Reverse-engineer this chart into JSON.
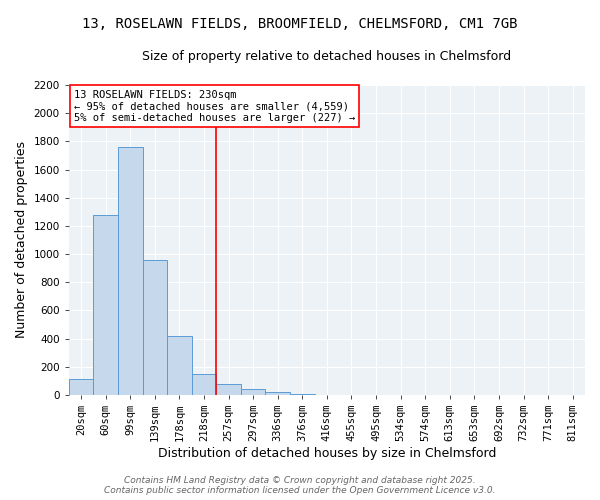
{
  "title_line1": "13, ROSELAWN FIELDS, BROOMFIELD, CHELMSFORD, CM1 7GB",
  "title_line2": "Size of property relative to detached houses in Chelmsford",
  "xlabel": "Distribution of detached houses by size in Chelmsford",
  "ylabel": "Number of detached properties",
  "bin_labels": [
    "20sqm",
    "60sqm",
    "99sqm",
    "139sqm",
    "178sqm",
    "218sqm",
    "257sqm",
    "297sqm",
    "336sqm",
    "376sqm",
    "416sqm",
    "455sqm",
    "495sqm",
    "534sqm",
    "574sqm",
    "613sqm",
    "653sqm",
    "692sqm",
    "732sqm",
    "771sqm",
    "811sqm"
  ],
  "bar_heights": [
    110,
    1280,
    1760,
    960,
    420,
    150,
    75,
    40,
    20,
    5,
    0,
    0,
    0,
    0,
    0,
    0,
    0,
    0,
    0,
    0,
    0
  ],
  "bar_color": "#c6d9ec",
  "bar_edge_color": "#5b9bd5",
  "vline_index": 5.5,
  "vline_color": "red",
  "ylim": [
    0,
    2200
  ],
  "yticks": [
    0,
    200,
    400,
    600,
    800,
    1000,
    1200,
    1400,
    1600,
    1800,
    2000,
    2200
  ],
  "annotation_text": "13 ROSELAWN FIELDS: 230sqm\n← 95% of detached houses are smaller (4,559)\n5% of semi-detached houses are larger (227) →",
  "annotation_box_color": "red",
  "footer_line1": "Contains HM Land Registry data © Crown copyright and database right 2025.",
  "footer_line2": "Contains public sector information licensed under the Open Government Licence v3.0.",
  "bg_color": "#edf2f7",
  "grid_color": "white",
  "title_fontsize": 10,
  "subtitle_fontsize": 9,
  "axis_label_fontsize": 9,
  "tick_fontsize": 7.5,
  "annotation_fontsize": 7.5,
  "footer_fontsize": 6.5
}
